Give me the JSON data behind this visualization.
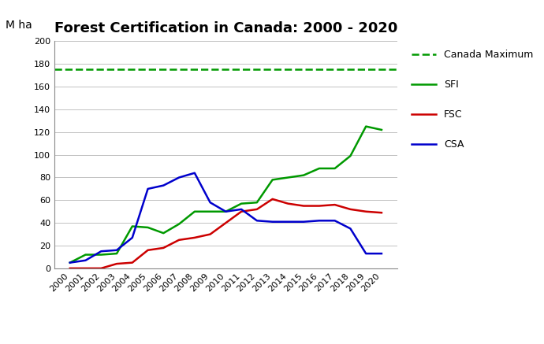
{
  "title": "Forest Certification in Canada: 2000 - 2020",
  "ylabel": "M ha",
  "years": [
    2000,
    2001,
    2002,
    2003,
    2004,
    2005,
    2006,
    2007,
    2008,
    2009,
    2010,
    2011,
    2012,
    2013,
    2014,
    2015,
    2016,
    2017,
    2018,
    2019,
    2020
  ],
  "SFI": [
    5,
    12,
    12,
    13,
    37,
    36,
    31,
    39,
    50,
    50,
    50,
    57,
    58,
    78,
    80,
    82,
    88,
    88,
    99,
    125,
    122
  ],
  "FSC": [
    0,
    0,
    0,
    4,
    5,
    16,
    18,
    25,
    27,
    30,
    40,
    50,
    52,
    61,
    57,
    55,
    55,
    56,
    52,
    50,
    49
  ],
  "CSA": [
    5,
    7,
    15,
    16,
    27,
    70,
    73,
    80,
    84,
    58,
    50,
    52,
    42,
    41,
    41,
    41,
    42,
    42,
    35,
    13,
    13
  ],
  "canada_max": 175,
  "ylim": [
    0,
    200
  ],
  "yticks": [
    0,
    20,
    40,
    60,
    80,
    100,
    120,
    140,
    160,
    180,
    200
  ],
  "SFI_color": "#009900",
  "FSC_color": "#cc0000",
  "CSA_color": "#0000cc",
  "canada_max_color": "#009900",
  "title_fontsize": 13,
  "tick_fontsize": 8,
  "label_fontsize": 10,
  "legend_fontsize": 9,
  "linewidth": 1.8,
  "figure_width": 6.9,
  "figure_height": 4.37,
  "dpi": 100
}
